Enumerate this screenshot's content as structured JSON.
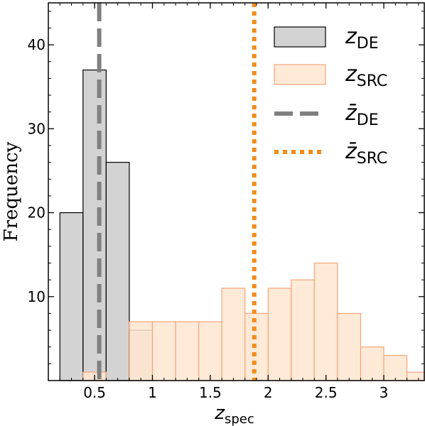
{
  "chart_data": {
    "type": "bar",
    "xlabel": "z",
    "xlabel_sub": "spec",
    "ylabel": "Frequency",
    "xlim": [
      0.1,
      3.35
    ],
    "ylim": [
      0,
      45
    ],
    "xticks": [
      0.5,
      1,
      1.5,
      2,
      2.5,
      3
    ],
    "xtick_labels": [
      "0.5",
      "1",
      "1.5",
      "2",
      "2.5",
      "3"
    ],
    "yticks": [
      10,
      20,
      30,
      40
    ],
    "ytick_labels": [
      "10",
      "20",
      "30",
      "40"
    ],
    "legend_position": "top-right",
    "grid": false,
    "colors": {
      "de_fill": "#d3d3d3",
      "de_edge": "#000000",
      "src_fill": "#ffe6d1",
      "src_edge": "#f4a57a",
      "de_mean_line": "#808080",
      "src_mean_line": "#f28c1c"
    },
    "series": [
      {
        "name": "z",
        "name_sub": "DE",
        "bin_edges": [
          0.2,
          0.4,
          0.6,
          0.8,
          1.0
        ],
        "values": [
          20,
          37,
          26,
          6
        ]
      },
      {
        "name": "z",
        "name_sub": "SRC",
        "bin_edges": [
          0.4,
          0.6,
          0.8,
          1.0,
          1.2,
          1.4,
          1.6,
          1.8,
          2.0,
          2.2,
          2.4,
          2.6,
          2.8,
          3.0,
          3.2,
          3.4
        ],
        "values": [
          1,
          0,
          7,
          7,
          7,
          7,
          11,
          8,
          11,
          12,
          14,
          8,
          4,
          3,
          1
        ]
      }
    ],
    "mean_lines": [
      {
        "name": "z̄",
        "name_sub": "DE",
        "x": 0.54,
        "style": "dashed"
      },
      {
        "name": "z̄",
        "name_sub": "SRC",
        "x": 1.88,
        "style": "dotted"
      }
    ]
  }
}
